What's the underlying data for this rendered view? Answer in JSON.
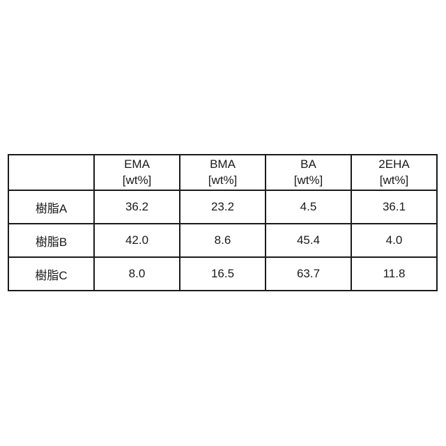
{
  "table": {
    "header": {
      "corner": "",
      "columns": [
        {
          "name": "EMA",
          "unit": "[wt%]"
        },
        {
          "name": "BMA",
          "unit": "[wt%]"
        },
        {
          "name": "BA",
          "unit": "[wt%]"
        },
        {
          "name": "2EHA",
          "unit": "[wt%]"
        }
      ]
    },
    "rows": [
      {
        "label": "樹脂A",
        "values": [
          "36.2",
          "23.2",
          "4.5",
          "36.1"
        ]
      },
      {
        "label": "樹脂B",
        "values": [
          "42.0",
          "8.6",
          "45.4",
          "4.0"
        ]
      },
      {
        "label": "樹脂C",
        "values": [
          "8.0",
          "16.5",
          "63.7",
          "11.8"
        ]
      }
    ]
  },
  "chart_data": {
    "type": "table",
    "columns": [
      "",
      "EMA [wt%]",
      "BMA [wt%]",
      "BA [wt%]",
      "2EHA [wt%]"
    ],
    "rows": [
      [
        "樹脂A",
        36.2,
        23.2,
        4.5,
        36.1
      ],
      [
        "樹脂B",
        42.0,
        8.6,
        45.4,
        4.0
      ],
      [
        "樹脂C",
        8.0,
        16.5,
        63.7,
        11.8
      ]
    ]
  }
}
